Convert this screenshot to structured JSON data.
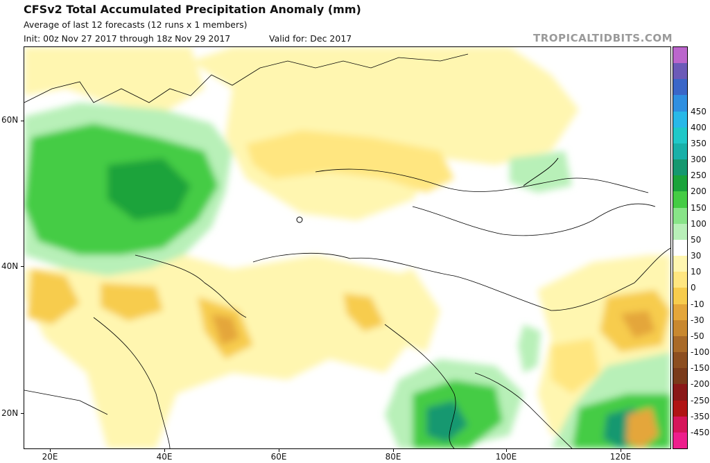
{
  "header": {
    "title": "CFSv2 Total Accumulated Precipitation Anomaly (mm)",
    "subtitle": "Average of last 12 forecasts (12 runs x 1 members)",
    "init": "Init: 00z Nov 27 2017 through 18z Nov 29 2017",
    "valid": "Valid for: Dec 2017",
    "brand": "TROPICALTIDBITS.COM"
  },
  "axes": {
    "lat_labels": [
      "60N",
      "40N",
      "20N"
    ],
    "lon_labels": [
      "20E",
      "40E",
      "60E",
      "80E",
      "100E",
      "120E"
    ]
  },
  "colorbar": {
    "labels": [
      "450",
      "400",
      "350",
      "300",
      "250",
      "200",
      "150",
      "100",
      "50",
      "30",
      "10",
      "0",
      "-10",
      "-30",
      "-50",
      "-100",
      "-150",
      "-200",
      "-250",
      "-350",
      "-450"
    ],
    "colors": [
      "#bb66cc",
      "#6c5ab8",
      "#3a66c8",
      "#2f8fe0",
      "#28b8e8",
      "#20c8c8",
      "#18b0a8",
      "#15986f",
      "#1aa33a",
      "#44cc44",
      "#88e488",
      "#b8f0b8",
      "#ffffff",
      "#fff6b0",
      "#ffe680",
      "#f7cc4d",
      "#e4a63a",
      "#c8882f",
      "#a96a28",
      "#8c4e20",
      "#7a3a1a",
      "#8a1818",
      "#b01414",
      "#d6155a",
      "#ee1e8c"
    ]
  }
}
